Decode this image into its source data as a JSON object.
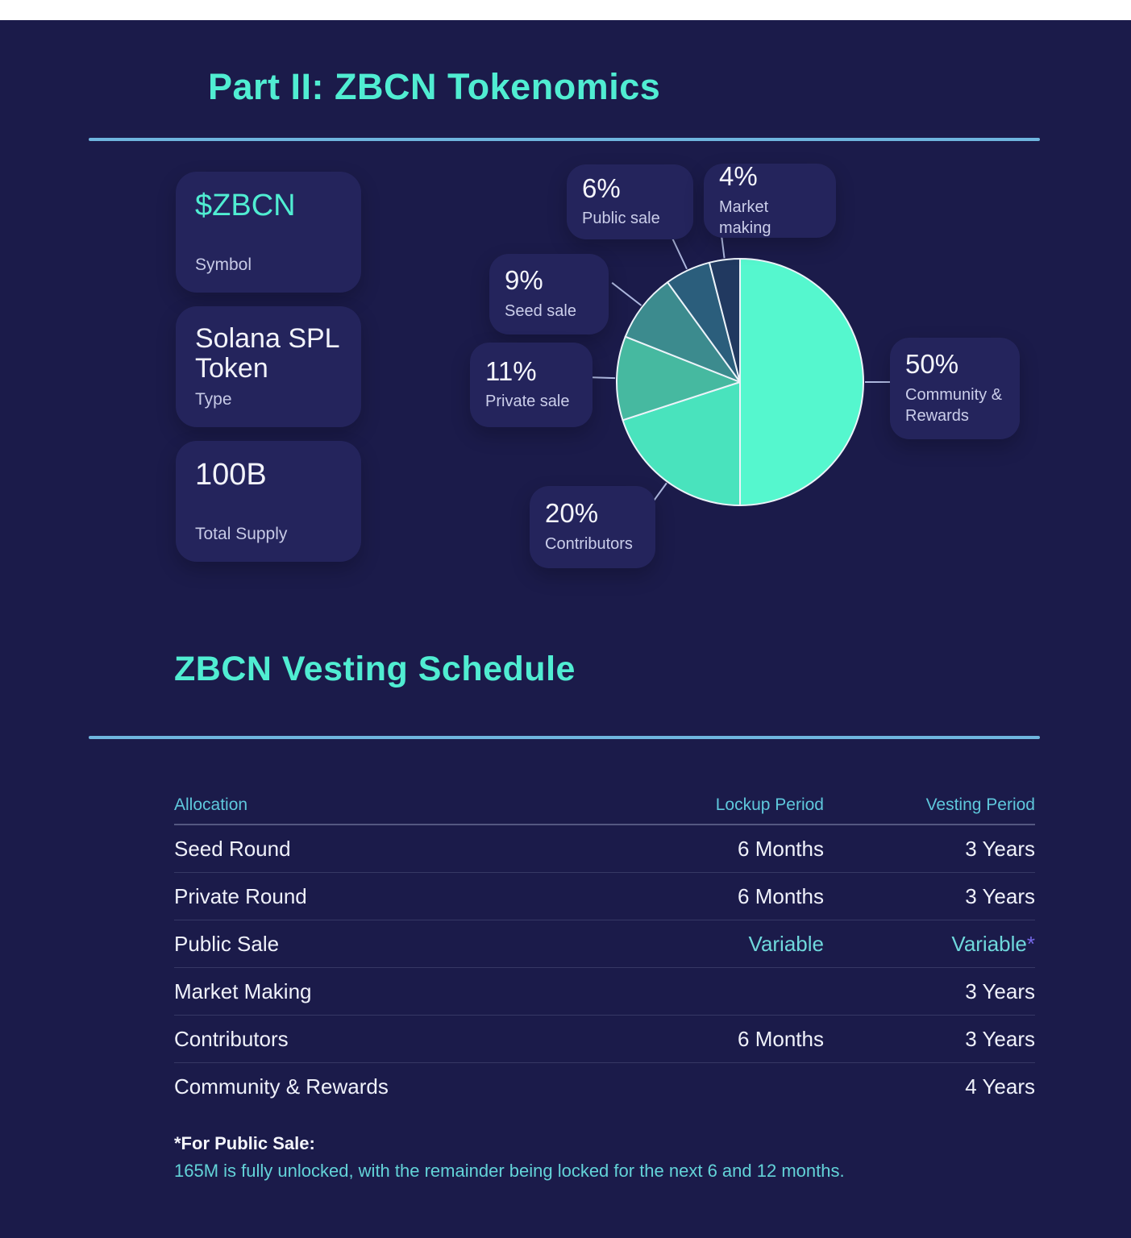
{
  "header": {
    "title": "Part II: ZBCN Tokenomics"
  },
  "token_cards": [
    {
      "value": "$ZBCN",
      "label": "Symbol"
    },
    {
      "value": "Solana SPL Token",
      "label": "Type"
    },
    {
      "value": "100B",
      "label": "Total Supply"
    }
  ],
  "chart_data": {
    "type": "pie",
    "labels": [
      "Community & Rewards",
      "Contributors",
      "Private sale",
      "Seed sale",
      "Public sale",
      "Market making"
    ],
    "values": [
      50,
      20,
      11,
      9,
      6,
      4
    ],
    "colors": [
      "#55f7ce",
      "#49e3bd",
      "#46b9a0",
      "#3c8b8e",
      "#2b5e7c",
      "#213960"
    ],
    "start_angle_deg": 0,
    "direction": "clockwise",
    "legend_position": "callout-cards",
    "callouts": [
      {
        "pct": "6%",
        "label": "Public sale"
      },
      {
        "pct": "4%",
        "label": "Market making"
      },
      {
        "pct": "9%",
        "label": "Seed sale"
      },
      {
        "pct": "11%",
        "label": "Private sale"
      },
      {
        "pct": "50%",
        "label": "Community & Rewards"
      },
      {
        "pct": "20%",
        "label": "Contributors"
      }
    ]
  },
  "section2": {
    "title": "ZBCN Vesting Schedule"
  },
  "table": {
    "headers": [
      "Allocation",
      "Lockup Period",
      "Vesting Period"
    ],
    "rows": [
      {
        "allocation": "Seed Round",
        "lockup": "6 Months",
        "vesting": "3 Years"
      },
      {
        "allocation": "Private Round",
        "lockup": "6 Months",
        "vesting": "3 Years"
      },
      {
        "allocation": "Public Sale",
        "lockup": "Variable",
        "vesting": "Variable",
        "vesting_suffix": "*",
        "accent": true
      },
      {
        "allocation": "Market Making",
        "lockup": "",
        "vesting": "3 Years"
      },
      {
        "allocation": "Contributors",
        "lockup": "6 Months",
        "vesting": "3 Years"
      },
      {
        "allocation": "Community & Rewards",
        "lockup": "",
        "vesting": "4 Years"
      }
    ]
  },
  "footnote": {
    "title": "*For Public Sale:",
    "text": "165M is fully unlocked, with the remainder being locked for the next 6 and 12 months."
  },
  "colors": {
    "panel_bg": "#1b1b4a",
    "card_bg": "#24245c",
    "accent_teal": "#50edd2",
    "rule_blue": "#6fb6df",
    "table_header_cyan": "#5fc8dc",
    "variable_cyan": "#6fd8dc",
    "asterisk_purple": "#7668e8"
  }
}
